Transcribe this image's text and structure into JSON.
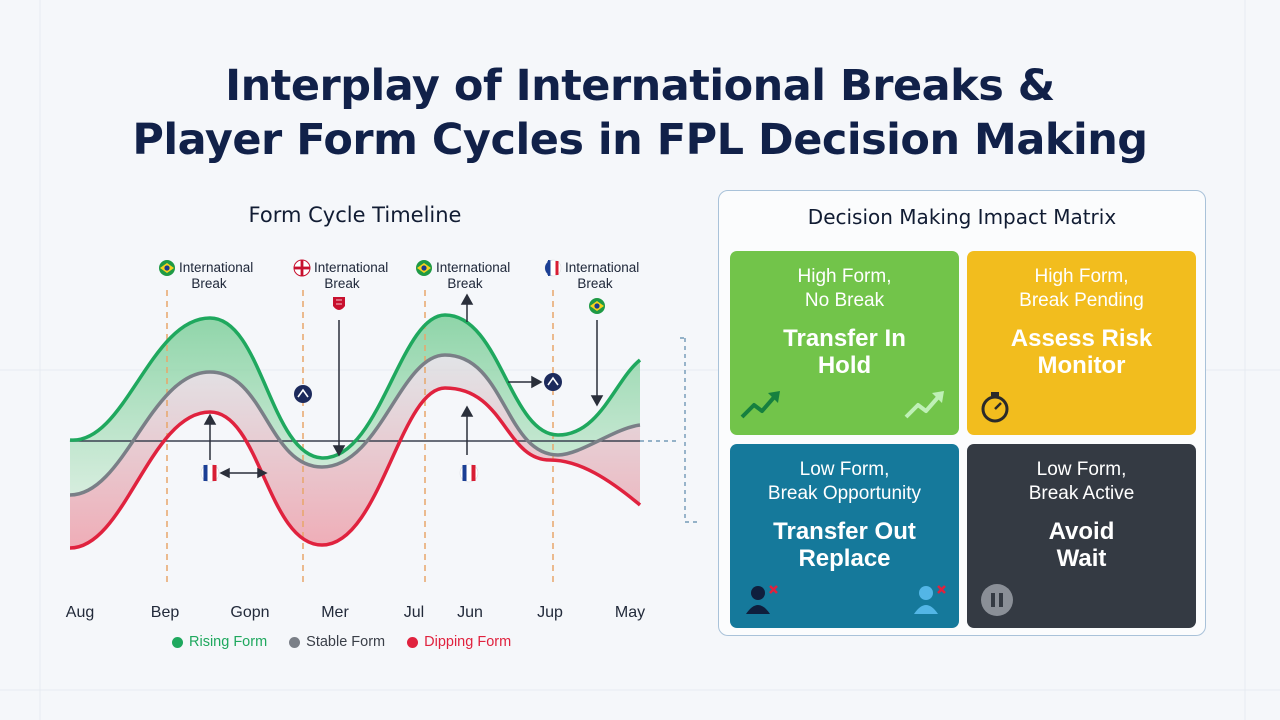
{
  "title": {
    "line1": "Interplay of International Breaks &",
    "line2": "Player Form Cycles in FPL Decision Making"
  },
  "timeline": {
    "title": "Form Cycle Timeline",
    "break_label_line1": "International",
    "break_label_line2": "Break",
    "x_labels": [
      "Aug",
      "Bep",
      "Gopn",
      "Mer",
      "Jul",
      "Jun",
      "Jup",
      "May"
    ],
    "legend": [
      {
        "label": "Rising Form",
        "color": "#1fa85e"
      },
      {
        "label": "Stable Form",
        "color": "#7a7f87"
      },
      {
        "label": "Dipping Form",
        "color": "#e0223e"
      }
    ]
  },
  "chart_data": {
    "type": "line",
    "title": "Form Cycle Timeline",
    "categories": [
      "Aug",
      "Bep",
      "Gopn",
      "Mer",
      "Jul",
      "Jun",
      "Jup",
      "May"
    ],
    "series": [
      {
        "name": "Rising Form",
        "color": "#1fa85e"
      },
      {
        "name": "Stable Form",
        "color": "#7a7f87"
      },
      {
        "name": "Dipping Form",
        "color": "#e0223e"
      }
    ],
    "annotations": [
      "International Break",
      "International Break",
      "International Break",
      "International Break"
    ],
    "grid": false,
    "legend_position": "bottom"
  },
  "matrix": {
    "title": "Decision Making Impact Matrix",
    "cells": [
      {
        "cond1": "High Form,",
        "cond2": "No Break",
        "act1": "Transfer In",
        "act2": "Hold",
        "color": "#72c44a",
        "icon": "trend-up-icon"
      },
      {
        "cond1": "High Form,",
        "cond2": "Break Pending",
        "act1": "Assess Risk",
        "act2": "Monitor",
        "color": "#f2bd1e",
        "icon": "stopwatch-icon"
      },
      {
        "cond1": "Low Form,",
        "cond2": "Break Opportunity",
        "act1": "Transfer Out",
        "act2": "Replace",
        "color": "#15799b",
        "icon": "remove-player-icon"
      },
      {
        "cond1": "Low Form,",
        "cond2": "Break Active",
        "act1": "Avoid",
        "act2": "Wait",
        "color": "#343a43",
        "icon": "pause-icon"
      }
    ]
  }
}
